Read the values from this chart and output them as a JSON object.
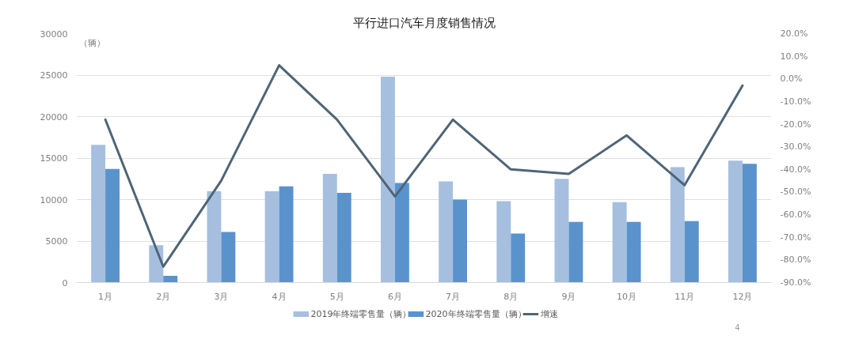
{
  "chart_data": {
    "type": "bar",
    "title": "平行进口汽车月度销售情况",
    "ylabel": "（辆）",
    "categories": [
      "1月",
      "2月",
      "3月",
      "4月",
      "5月",
      "6月",
      "7月",
      "8月",
      "9月",
      "10月",
      "11月",
      "12月"
    ],
    "series": [
      {
        "name": "2019年终端零售量（辆）",
        "color": "#a6bfdf",
        "values": [
          16600,
          4500,
          11000,
          11000,
          13100,
          24800,
          12200,
          9800,
          12500,
          9700,
          13900,
          14700
        ]
      },
      {
        "name": "2020年终端零售量（辆）",
        "color": "#5a93cc",
        "values": [
          13700,
          800,
          6100,
          11600,
          10800,
          12000,
          10000,
          5900,
          7300,
          7300,
          7400,
          14300
        ]
      },
      {
        "name": "增速",
        "type": "line",
        "axis": "y2",
        "color": "#4e6577",
        "values": [
          -18,
          -83,
          -45,
          6,
          -18,
          -52,
          -18,
          -40,
          -42,
          -25,
          -47,
          -3
        ]
      }
    ],
    "ylim": [
      0,
      30000
    ],
    "yticks": [
      0,
      5000,
      10000,
      15000,
      20000,
      25000,
      30000
    ],
    "y2lim": [
      -90,
      20
    ],
    "y2ticks": [
      {
        "value": 20,
        "label": "20.0%"
      },
      {
        "value": 10,
        "label": "10.0%"
      },
      {
        "value": 0,
        "label": "0.0%"
      },
      {
        "value": -10,
        "label": "-10.0%"
      },
      {
        "value": -20,
        "label": "-20.0%"
      },
      {
        "value": -30,
        "label": "-30.0%"
      },
      {
        "value": -40,
        "label": "-40.0%"
      },
      {
        "value": -50,
        "label": "-50.0%"
      },
      {
        "value": -60,
        "label": "-60.0%"
      },
      {
        "value": -70,
        "label": "-70.0%"
      },
      {
        "value": -80,
        "label": "-80.0%"
      },
      {
        "value": -90,
        "label": "-90.0%"
      }
    ],
    "grid": "y",
    "legend": "bottom",
    "annotations": [
      "4"
    ]
  }
}
